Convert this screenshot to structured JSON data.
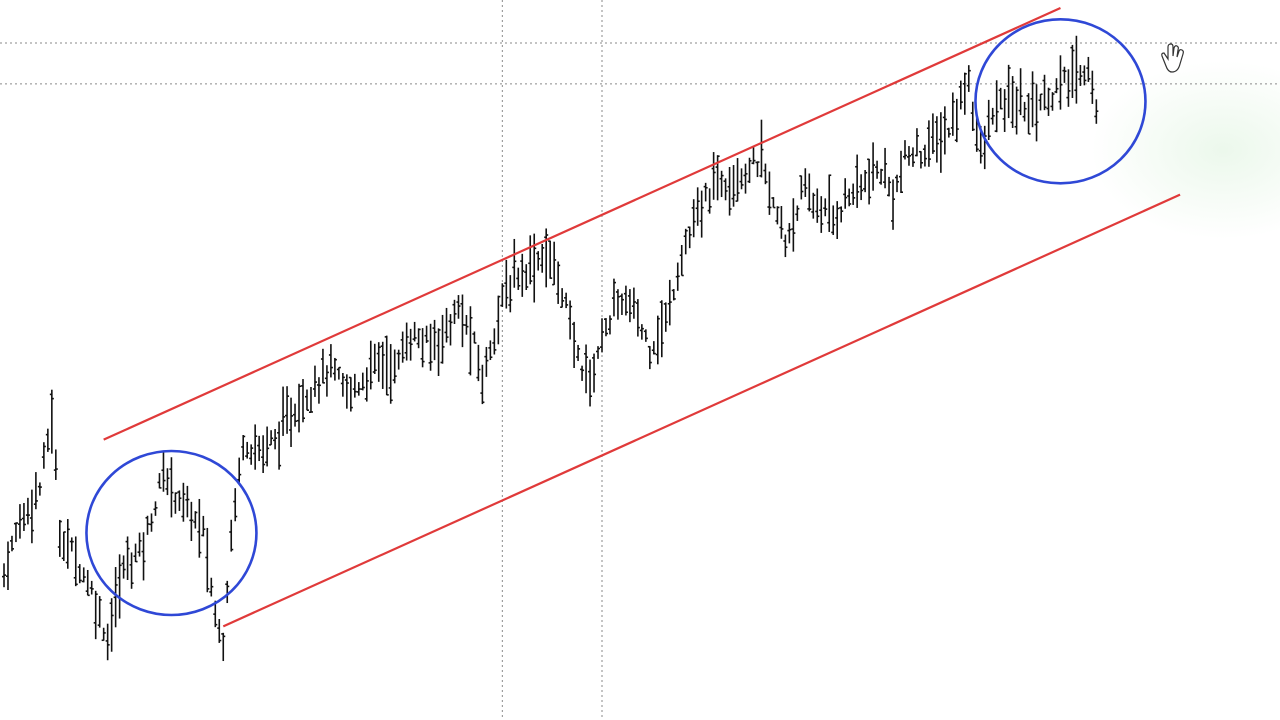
{
  "chart_data": {
    "type": "bar",
    "subtype": "ohlc-price-bars",
    "title": "",
    "xlabel": "",
    "ylabel": "",
    "x_points": 300,
    "ylim": [
      0,
      100
    ],
    "grid": false,
    "legend": "none",
    "price_path": [
      [
        0,
        15
      ],
      [
        4,
        24
      ],
      [
        9,
        30
      ],
      [
        12,
        42
      ],
      [
        14,
        22
      ],
      [
        18,
        18
      ],
      [
        22,
        12
      ],
      [
        26,
        4
      ],
      [
        30,
        16
      ],
      [
        35,
        20
      ],
      [
        40,
        32
      ],
      [
        44,
        28
      ],
      [
        50,
        22
      ],
      [
        53,
        8
      ],
      [
        55,
        4
      ],
      [
        57,
        22
      ],
      [
        60,
        38
      ],
      [
        64,
        36
      ],
      [
        68,
        38
      ],
      [
        72,
        42
      ],
      [
        78,
        48
      ],
      [
        82,
        50
      ],
      [
        86,
        46
      ],
      [
        90,
        48
      ],
      [
        94,
        52
      ],
      [
        98,
        50
      ],
      [
        102,
        56
      ],
      [
        106,
        54
      ],
      [
        110,
        56
      ],
      [
        114,
        60
      ],
      [
        118,
        54
      ],
      [
        120,
        48
      ],
      [
        124,
        60
      ],
      [
        128,
        66
      ],
      [
        132,
        68
      ],
      [
        136,
        70
      ],
      [
        140,
        64
      ],
      [
        143,
        54
      ],
      [
        147,
        48
      ],
      [
        151,
        58
      ],
      [
        155,
        62
      ],
      [
        158,
        60
      ],
      [
        162,
        54
      ],
      [
        166,
        58
      ],
      [
        170,
        70
      ],
      [
        174,
        76
      ],
      [
        178,
        82
      ],
      [
        186,
        84
      ],
      [
        190,
        86
      ],
      [
        193,
        78
      ],
      [
        196,
        72
      ],
      [
        200,
        80
      ],
      [
        204,
        78
      ],
      [
        208,
        76
      ],
      [
        212,
        80
      ],
      [
        216,
        82
      ],
      [
        220,
        84
      ],
      [
        223,
        80
      ],
      [
        226,
        86
      ],
      [
        232,
        88
      ],
      [
        238,
        92
      ],
      [
        242,
        100
      ],
      [
        245,
        86
      ],
      [
        248,
        94
      ],
      [
        252,
        96
      ],
      [
        256,
        95
      ],
      [
        260,
        96
      ],
      [
        264,
        98
      ],
      [
        268,
        100
      ],
      [
        272,
        102
      ],
      [
        274,
        94
      ]
    ],
    "channel": {
      "color": "#e03a3a",
      "upper": [
        [
          25,
          38
        ],
        [
          265,
          112
        ]
      ],
      "lower": [
        [
          55,
          6
        ],
        [
          295,
          80
        ]
      ]
    },
    "highlights": [
      {
        "label": "",
        "x_center": 42,
        "y_center": 22,
        "color": "#2f48d6"
      },
      {
        "label": "",
        "x_center": 265,
        "y_center": 96,
        "color": "#2f48d6"
      }
    ],
    "reference_lines": {
      "horizontal_levels": [
        106,
        99
      ],
      "vertical_positions": [
        125,
        150
      ],
      "style": "dotted",
      "color": "#8a8a8a"
    },
    "bar_color": "#111111"
  }
}
